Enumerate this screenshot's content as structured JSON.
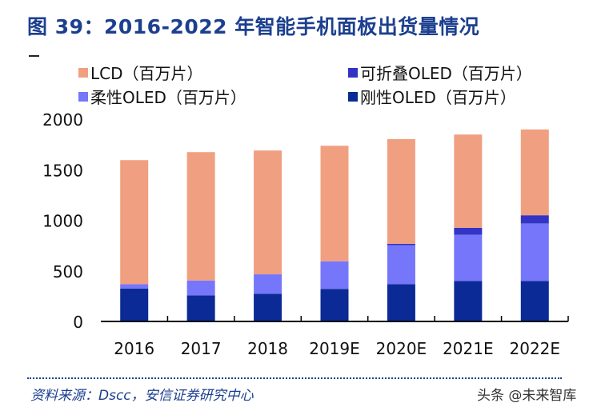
{
  "title": "图 39：2016-2022 年智能手机面板出货量情况",
  "source": "资料来源：Dscc，安信证券研究中心",
  "watermark": "头条 @未来智库",
  "chart_data": {
    "type": "bar",
    "stacked": true,
    "title": "图 39：2016-2022 年智能手机面板出货量情况",
    "xlabel": "",
    "ylabel": "",
    "ylim": [
      0,
      2000
    ],
    "yticks": [
      "0",
      "500",
      "1000",
      "1500",
      "2000"
    ],
    "grid": false,
    "legend_position": "top",
    "categories": [
      "2016",
      "2017",
      "2018",
      "2019E",
      "2020E",
      "2021E",
      "2022E"
    ],
    "series": [
      {
        "name": "刚性OLED（百万片）",
        "color": "#0c2a96",
        "values": [
          326,
          258,
          274,
          321,
          368,
          400,
          400
        ]
      },
      {
        "name": "柔性OLED（百万片）",
        "color": "#7676fa",
        "values": [
          42,
          147,
          192,
          274,
          385,
          458,
          569
        ]
      },
      {
        "name": "可折叠OLED（百万片）",
        "color": "#3434c4",
        "values": [
          0,
          0,
          0,
          0,
          15,
          68,
          81
        ]
      },
      {
        "name": "LCD（百万片）",
        "color": "#f0a080",
        "values": [
          1227,
          1269,
          1224,
          1142,
          1035,
          922,
          848
        ]
      }
    ]
  }
}
